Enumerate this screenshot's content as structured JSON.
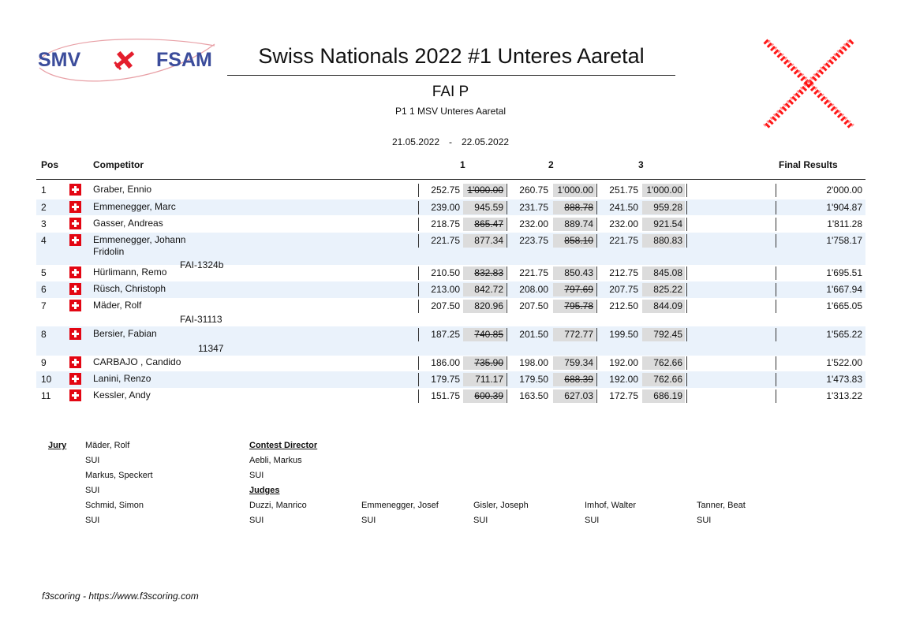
{
  "header": {
    "logo_text_left": "SMV",
    "logo_text_right": "FSAM",
    "title": "Swiss Nationals 2022 #1 Unteres Aaretal",
    "class": "FAI P",
    "subtitle": "P1 1 MSV Unteres Aaretal",
    "date_start": "21.05.2022",
    "date_sep": "-",
    "date_end": "22.05.2022"
  },
  "columns": {
    "pos": "Pos",
    "competitor": "Competitor",
    "round1": "1",
    "round2": "2",
    "round3": "3",
    "final": "Final Results"
  },
  "rows": [
    {
      "pos": "1",
      "name": "Graber, Ennio",
      "name2": "",
      "fai": "",
      "r": [
        [
          "252.75",
          "1'000.00",
          true
        ],
        [
          "260.75",
          "1'000.00",
          false
        ],
        [
          "251.75",
          "1'000.00",
          false
        ]
      ],
      "final": "2'000.00"
    },
    {
      "pos": "2",
      "name": "Emmenegger, Marc",
      "name2": "",
      "fai": "",
      "r": [
        [
          "239.00",
          "945.59",
          false
        ],
        [
          "231.75",
          "888.78",
          true
        ],
        [
          "241.50",
          "959.28",
          false
        ]
      ],
      "final": "1'904.87"
    },
    {
      "pos": "3",
      "name": "Gasser, Andreas",
      "name2": "",
      "fai": "",
      "r": [
        [
          "218.75",
          "865.47",
          true
        ],
        [
          "232.00",
          "889.74",
          false
        ],
        [
          "232.00",
          "921.54",
          false
        ]
      ],
      "final": "1'811.28"
    },
    {
      "pos": "4",
      "name": "Emmenegger, Johann",
      "name2": "Fridolin",
      "fai": "FAI-1324b",
      "r": [
        [
          "221.75",
          "877.34",
          false
        ],
        [
          "223.75",
          "858.10",
          true
        ],
        [
          "221.75",
          "880.83",
          false
        ]
      ],
      "final": "1'758.17"
    },
    {
      "pos": "5",
      "name": "Hürlimann, Remo",
      "name2": "",
      "fai": "",
      "r": [
        [
          "210.50",
          "832.83",
          true
        ],
        [
          "221.75",
          "850.43",
          false
        ],
        [
          "212.75",
          "845.08",
          false
        ]
      ],
      "final": "1'695.51"
    },
    {
      "pos": "6",
      "name": "Rüsch, Christoph",
      "name2": "",
      "fai": "",
      "r": [
        [
          "213.00",
          "842.72",
          false
        ],
        [
          "208.00",
          "797.69",
          true
        ],
        [
          "207.75",
          "825.22",
          false
        ]
      ],
      "final": "1'667.94"
    },
    {
      "pos": "7",
      "name": "Mäder, Rolf",
      "name2": "",
      "fai": "FAI-31113",
      "r": [
        [
          "207.50",
          "820.96",
          false
        ],
        [
          "207.50",
          "795.78",
          true
        ],
        [
          "212.50",
          "844.09",
          false
        ]
      ],
      "final": "1'665.05"
    },
    {
      "pos": "8",
      "name": "Bersier, Fabian",
      "name2": "",
      "fai": "11347",
      "r": [
        [
          "187.25",
          "740.85",
          true
        ],
        [
          "201.50",
          "772.77",
          false
        ],
        [
          "199.50",
          "792.45",
          false
        ]
      ],
      "final": "1'565.22"
    },
    {
      "pos": "9",
      "name": "CARBAJO       , Candido",
      "name2": "",
      "fai": "",
      "r": [
        [
          "186.00",
          "735.90",
          true
        ],
        [
          "198.00",
          "759.34",
          false
        ],
        [
          "192.00",
          "762.66",
          false
        ]
      ],
      "final": "1'522.00"
    },
    {
      "pos": "10",
      "name": "Lanini, Renzo",
      "name2": "",
      "fai": "",
      "r": [
        [
          "179.75",
          "711.17",
          false
        ],
        [
          "179.50",
          "688.39",
          true
        ],
        [
          "192.00",
          "762.66",
          false
        ]
      ],
      "final": "1'473.83"
    },
    {
      "pos": "11",
      "name": "Kessler, Andy",
      "name2": "",
      "fai": "",
      "r": [
        [
          "151.75",
          "600.39",
          true
        ],
        [
          "163.50",
          "627.03",
          false
        ],
        [
          "172.75",
          "686.19",
          false
        ]
      ],
      "final": "1'313.22"
    }
  ],
  "officials": {
    "jury_label": "Jury",
    "jury": [
      {
        "name": "Mäder, Rolf",
        "country": "SUI"
      },
      {
        "name": "Markus, Speckert",
        "country": "SUI"
      },
      {
        "name": "Schmid, Simon",
        "country": "SUI"
      }
    ],
    "director_label": "Contest Director",
    "director": {
      "name": "Aebli, Markus",
      "country": "SUI"
    },
    "judges_label": "Judges",
    "judges": [
      {
        "name": "Duzzi, Manrico",
        "country": "SUI"
      },
      {
        "name": "Emmenegger, Josef",
        "country": "SUI"
      },
      {
        "name": "Gisler, Joseph",
        "country": "SUI"
      },
      {
        "name": "Imhof, Walter",
        "country": "SUI"
      },
      {
        "name": "Tanner, Beat",
        "country": "SUI"
      }
    ]
  },
  "footer": {
    "credit": "f3scoring - https://www.f3scoring.com"
  },
  "colors": {
    "logo_blue": "#3b4c9b",
    "logo_red": "#e41e2d",
    "row_shade": "#eaf2fb",
    "score_bg": "#dcdcdc",
    "flag_red": "#e30613",
    "cross_red": "#ff0000"
  }
}
